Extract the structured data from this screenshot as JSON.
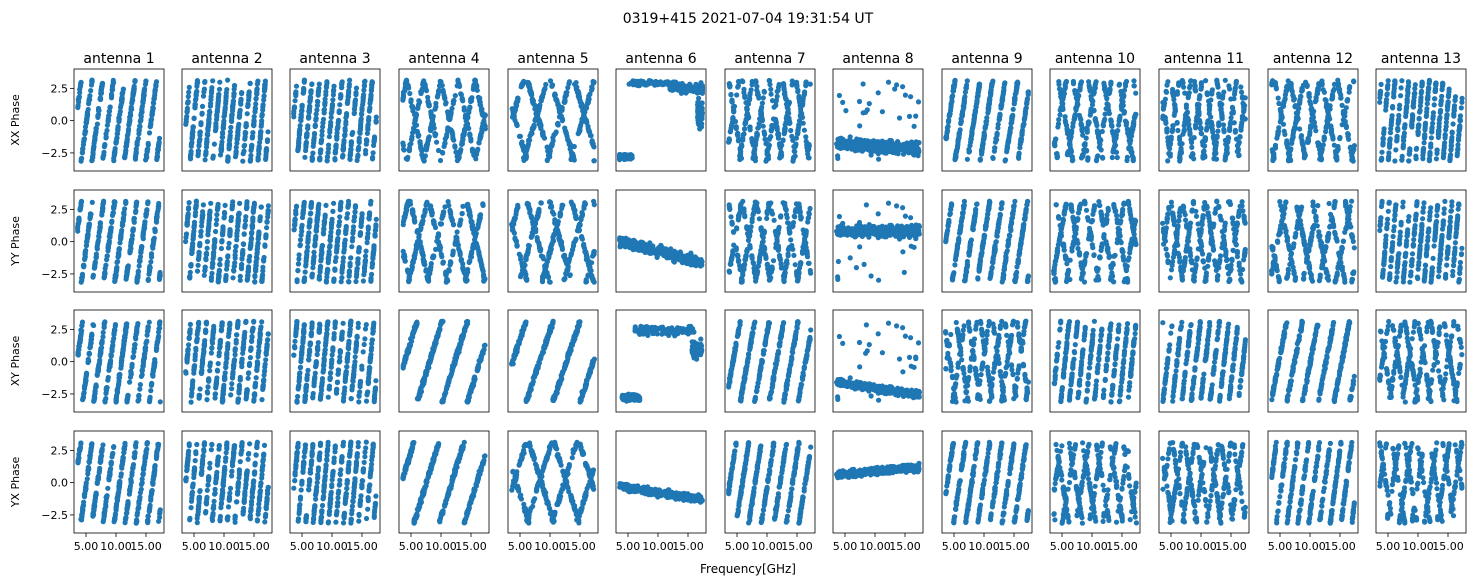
{
  "figure": {
    "title": "0319+415 2021-07-04 19:31:54 UT",
    "xlabel": "Frequency[GHz]"
  },
  "colors": {
    "points": "#1f77b4",
    "frame": "#000000",
    "text": "#000000"
  },
  "chart_data": {
    "type": "scatter",
    "layout": "grid",
    "rows": [
      "XX Phase",
      "YY Phase",
      "XY Phase",
      "YX Phase"
    ],
    "columns": [
      "antenna 1",
      "antenna 2",
      "antenna 3",
      "antenna 4",
      "antenna 5",
      "antenna 6",
      "antenna 7",
      "antenna 8",
      "antenna 9",
      "antenna 10",
      "antenna 11",
      "antenna 12",
      "antenna 13"
    ],
    "xlim": [
      3.0,
      18.0
    ],
    "ylim": [
      -3.9,
      4.0
    ],
    "xticks": [
      5.0,
      10.0,
      15.0
    ],
    "xtick_labels": [
      "5.00",
      "10.00",
      "15.00"
    ],
    "yticks": [
      -2.5,
      0.0,
      2.5
    ],
    "ytick_labels": [
      "−2.5",
      "0.0",
      "2.5"
    ],
    "x_range_data": [
      3.6,
      17.4
    ],
    "points_per_panel": 360,
    "panels": [
      [
        {
          "pattern": "wrap",
          "slope": 3.5,
          "offset": 1.0
        },
        {
          "pattern": "wrap",
          "slope": 5.0,
          "offset": 0.3
        },
        {
          "pattern": "wrap",
          "slope": 5.0,
          "offset": 1.2
        },
        {
          "pattern": "wrap",
          "slope": 2.2,
          "offset": 0.0,
          "cross": true
        },
        {
          "pattern": "wrap",
          "slope": 1.6,
          "offset": 0.5,
          "cross": true
        },
        {
          "pattern": "clusters",
          "centers": [
            [
              4.5,
              -2.8,
              1.2,
              0.2
            ],
            [
              9,
              2.9,
              4,
              0.2
            ],
            [
              15,
              2.5,
              3,
              0.4
            ],
            [
              17,
              0.5,
              0.4,
              1.2
            ]
          ]
        },
        {
          "pattern": "wrap",
          "slope": 2.8,
          "offset": 0.7,
          "cross": true
        },
        {
          "pattern": "band",
          "start": -1.8,
          "end": -2.2,
          "noise": 0.5,
          "extra": true
        },
        {
          "pattern": "wrap",
          "slope": 3.0,
          "offset": 0.2
        },
        {
          "pattern": "wrap",
          "slope": 2.5,
          "offset": 1.4,
          "cross": true
        },
        {
          "pattern": "wrap",
          "slope": 3.3,
          "offset": 0.9,
          "cross": true
        },
        {
          "pattern": "wrap",
          "slope": 2.4,
          "offset": 0.4,
          "cross": true
        },
        {
          "pattern": "wrap",
          "slope": 5.5,
          "offset": 0.6
        }
      ],
      [
        {
          "pattern": "wrap",
          "slope": 3.4,
          "offset": 1.3
        },
        {
          "pattern": "wrap",
          "slope": 5.2,
          "offset": 0.1
        },
        {
          "pattern": "wrap",
          "slope": 5.1,
          "offset": 0.9
        },
        {
          "pattern": "wrap",
          "slope": 2.0,
          "offset": 0.3,
          "cross": true
        },
        {
          "pattern": "wrap",
          "slope": 1.7,
          "offset": 1.1,
          "cross": true
        },
        {
          "pattern": "band",
          "start": 0.0,
          "end": -1.6,
          "noise": 0.45
        },
        {
          "pattern": "wrap",
          "slope": 2.7,
          "offset": 0.2,
          "cross": true
        },
        {
          "pattern": "band",
          "start": 0.8,
          "end": 0.8,
          "noise": 0.45,
          "extra": true
        },
        {
          "pattern": "wrap",
          "slope": 3.0,
          "offset": 1.7
        },
        {
          "pattern": "wrap",
          "slope": 2.6,
          "offset": 0.8,
          "cross": true
        },
        {
          "pattern": "wrap",
          "slope": 3.2,
          "offset": 0.3,
          "cross": true
        },
        {
          "pattern": "wrap",
          "slope": 2.3,
          "offset": 1.9,
          "cross": true
        },
        {
          "pattern": "wrap",
          "slope": 5.4,
          "offset": 0.2
        }
      ],
      [
        {
          "pattern": "wrap",
          "slope": 3.4,
          "offset": 0.6
        },
        {
          "pattern": "wrap",
          "slope": 4.8,
          "offset": 0.5
        },
        {
          "pattern": "wrap",
          "slope": 4.9,
          "offset": 1.5
        },
        {
          "pattern": "wrap",
          "slope": 1.5,
          "offset": 0.4
        },
        {
          "pattern": "wrap",
          "slope": 1.4,
          "offset": 1.0
        },
        {
          "pattern": "clusters",
          "centers": [
            [
              5.5,
              -2.8,
              1.5,
              0.25
            ],
            [
              11,
              2.4,
              5,
              0.4
            ],
            [
              16.5,
              1.0,
              0.8,
              0.7
            ]
          ]
        },
        {
          "pattern": "wrap",
          "slope": 2.6,
          "offset": 1.3
        },
        {
          "pattern": "band",
          "start": -1.6,
          "end": -2.6,
          "noise": 0.3,
          "extra": true
        },
        {
          "pattern": "wrap",
          "slope": 3.1,
          "offset": 0.9,
          "cross": true
        },
        {
          "pattern": "wrap",
          "slope": 4.5,
          "offset": 0.4
        },
        {
          "pattern": "wrap",
          "slope": 4.0,
          "offset": 1.1
        },
        {
          "pattern": "wrap",
          "slope": 2.4,
          "offset": 1.0
        },
        {
          "pattern": "wrap",
          "slope": 2.9,
          "offset": 0.7,
          "cross": true
        }
      ],
      [
        {
          "pattern": "wrap",
          "slope": 3.4,
          "offset": 1.6
        },
        {
          "pattern": "wrap",
          "slope": 5.0,
          "offset": 0.8
        },
        {
          "pattern": "wrap",
          "slope": 5.0,
          "offset": 0.2
        },
        {
          "pattern": "wrap",
          "slope": 1.5,
          "offset": 1.2
        },
        {
          "pattern": "wrap",
          "slope": 1.5,
          "offset": 0.3,
          "cross": true
        },
        {
          "pattern": "band",
          "start": -0.3,
          "end": -1.3,
          "noise": 0.3
        },
        {
          "pattern": "wrap",
          "slope": 3.0,
          "offset": 1.1
        },
        {
          "pattern": "band",
          "start": 0.6,
          "end": 1.2,
          "noise": 0.3
        },
        {
          "pattern": "wrap",
          "slope": 3.1,
          "offset": 0.5
        },
        {
          "pattern": "wrap",
          "slope": 2.8,
          "offset": 1.6,
          "cross": true
        },
        {
          "pattern": "wrap",
          "slope": 3.1,
          "offset": 0.6,
          "cross": true
        },
        {
          "pattern": "wrap",
          "slope": 3.5,
          "offset": 0.3
        },
        {
          "pattern": "wrap",
          "slope": 3.0,
          "offset": 1.4,
          "cross": true
        }
      ]
    ]
  }
}
